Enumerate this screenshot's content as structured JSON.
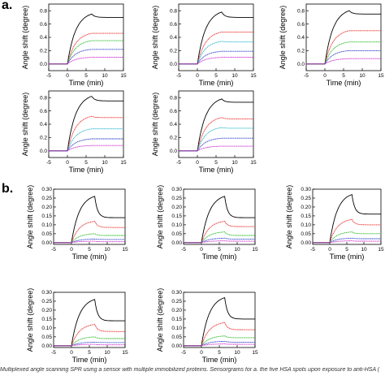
{
  "panel_labels": {
    "a": "a.",
    "b": "b."
  },
  "caption": "Multiplexed angle scanning SPR using a sensor with multiple immobilized proteins. Sensorgrams for a. the five HSA spots upon exposure to anti-HSA (",
  "colors": {
    "black": "#000000",
    "red": "#e8231e",
    "green": "#1fb81f",
    "cyan": "#1cb3c8",
    "blue": "#2238c8",
    "magenta": "#c81ec8"
  },
  "chart_data": [
    {
      "type": "line",
      "panel": "a",
      "index": 1,
      "xlabel": "Time (min)",
      "ylabel": "Angle shift (degree)",
      "xlim": [
        -5,
        15
      ],
      "ylim": [
        -0.1,
        0.9
      ],
      "xticks": [
        "-5",
        "0",
        "5",
        "10",
        "15"
      ],
      "yticks": [
        "0.0",
        "0.2",
        "0.4",
        "0.6",
        "0.8"
      ],
      "injection_start": 0,
      "injection_end": 6.5,
      "series": [
        {
          "color": "black",
          "plateau": 0.75,
          "end": 0.7
        },
        {
          "color": "red",
          "plateau": 0.46,
          "end": 0.46
        },
        {
          "color": "green",
          "plateau": 0.35,
          "end": 0.35
        },
        {
          "color": "blue",
          "plateau": 0.22,
          "end": 0.22
        },
        {
          "color": "magenta",
          "plateau": 0.1,
          "end": 0.1
        }
      ]
    },
    {
      "type": "line",
      "panel": "a",
      "index": 2,
      "xlabel": "Time (min)",
      "ylabel": "Angle shift (degree)",
      "xlim": [
        -5,
        15
      ],
      "ylim": [
        -0.1,
        0.9
      ],
      "xticks": [
        "-5",
        "0",
        "5",
        "10",
        "15"
      ],
      "yticks": [
        "0.0",
        "0.2",
        "0.4",
        "0.6",
        "0.8"
      ],
      "injection_start": 0,
      "injection_end": 6.5,
      "series": [
        {
          "color": "black",
          "plateau": 0.78,
          "end": 0.7
        },
        {
          "color": "red",
          "plateau": 0.48,
          "end": 0.48
        },
        {
          "color": "cyan",
          "plateau": 0.34,
          "end": 0.33
        },
        {
          "color": "blue",
          "plateau": 0.19,
          "end": 0.19
        },
        {
          "color": "magenta",
          "plateau": 0.1,
          "end": 0.1
        }
      ]
    },
    {
      "type": "line",
      "panel": "a",
      "index": 3,
      "xlabel": "Time (min)",
      "ylabel": "Angle shift (degree)",
      "xlim": [
        -5,
        15
      ],
      "ylim": [
        -0.1,
        0.9
      ],
      "xticks": [
        "-5",
        "0",
        "5",
        "10",
        "15"
      ],
      "yticks": [
        "0.0",
        "0.2",
        "0.4",
        "0.6",
        "0.8"
      ],
      "injection_start": 0,
      "injection_end": 6.5,
      "series": [
        {
          "color": "black",
          "plateau": 0.8,
          "end": 0.75
        },
        {
          "color": "red",
          "plateau": 0.5,
          "end": 0.5
        },
        {
          "color": "green",
          "plateau": 0.33,
          "end": 0.33
        },
        {
          "color": "blue",
          "plateau": 0.2,
          "end": 0.2
        },
        {
          "color": "magenta",
          "plateau": 0.08,
          "end": 0.08
        }
      ]
    },
    {
      "type": "line",
      "panel": "a",
      "index": 4,
      "xlabel": "Time (min)",
      "ylabel": "Angle shift (degree)",
      "xlim": [
        -5,
        15
      ],
      "ylim": [
        -0.1,
        0.9
      ],
      "xticks": [
        "-5",
        "0",
        "5",
        "10",
        "15"
      ],
      "yticks": [
        "0.0",
        "0.2",
        "0.4",
        "0.6",
        "0.8"
      ],
      "injection_start": 0,
      "injection_end": 6.5,
      "series": [
        {
          "color": "black",
          "plateau": 0.82,
          "end": 0.75
        },
        {
          "color": "red",
          "plateau": 0.52,
          "end": 0.5
        },
        {
          "color": "cyan",
          "plateau": 0.33,
          "end": 0.33
        },
        {
          "color": "blue",
          "plateau": 0.18,
          "end": 0.18
        },
        {
          "color": "magenta",
          "plateau": 0.08,
          "end": 0.08
        }
      ]
    },
    {
      "type": "line",
      "panel": "a",
      "index": 5,
      "xlabel": "Time (min)",
      "ylabel": "Angle shift (degree)",
      "xlim": [
        -5,
        15
      ],
      "ylim": [
        -0.1,
        0.9
      ],
      "xticks": [
        "-5",
        "0",
        "5",
        "10",
        "15"
      ],
      "yticks": [
        "0.0",
        "0.2",
        "0.4",
        "0.6",
        "0.8"
      ],
      "injection_start": 0,
      "injection_end": 6.5,
      "series": [
        {
          "color": "black",
          "plateau": 0.78,
          "end": 0.73
        },
        {
          "color": "red",
          "plateau": 0.5,
          "end": 0.48
        },
        {
          "color": "cyan",
          "plateau": 0.35,
          "end": 0.34
        },
        {
          "color": "blue",
          "plateau": 0.19,
          "end": 0.19
        },
        {
          "color": "magenta",
          "plateau": 0.07,
          "end": 0.07
        }
      ]
    },
    {
      "type": "line",
      "panel": "b",
      "index": 1,
      "xlabel": "Time (min)",
      "ylabel": "Angle shift (degree)",
      "xlim": [
        -5,
        15
      ],
      "ylim": [
        -0.01,
        0.3
      ],
      "xticks": [
        "-5",
        "0",
        "5",
        "10",
        "15"
      ],
      "yticks": [
        "0.00",
        "0.05",
        "0.10",
        "0.15",
        "0.20",
        "0.25",
        "0.30"
      ],
      "injection_start": 0,
      "injection_end": 6.5,
      "series": [
        {
          "color": "black",
          "plateau": 0.26,
          "end": 0.14
        },
        {
          "color": "red",
          "plateau": 0.12,
          "end": 0.085
        },
        {
          "color": "green",
          "plateau": 0.05,
          "end": 0.04
        },
        {
          "color": "blue",
          "plateau": 0.02,
          "end": 0.018
        },
        {
          "color": "magenta",
          "plateau": 0.008,
          "end": 0.005
        }
      ]
    },
    {
      "type": "line",
      "panel": "b",
      "index": 2,
      "xlabel": "Time (min)",
      "ylabel": "Angle shift (degree)",
      "xlim": [
        -5,
        15
      ],
      "ylim": [
        -0.01,
        0.3
      ],
      "xticks": [
        "-5",
        "0",
        "5",
        "10",
        "15"
      ],
      "yticks": [
        "0.00",
        "0.05",
        "0.10",
        "0.15",
        "0.20",
        "0.25",
        "0.30"
      ],
      "injection_start": 0,
      "injection_end": 6.5,
      "series": [
        {
          "color": "black",
          "plateau": 0.26,
          "end": 0.14
        },
        {
          "color": "red",
          "plateau": 0.12,
          "end": 0.09
        },
        {
          "color": "green",
          "plateau": 0.06,
          "end": 0.04
        },
        {
          "color": "blue",
          "plateau": 0.025,
          "end": 0.02
        },
        {
          "color": "magenta",
          "plateau": 0.01,
          "end": 0.008
        }
      ]
    },
    {
      "type": "line",
      "panel": "b",
      "index": 3,
      "xlabel": "Time (min)",
      "ylabel": "Angle shift (degree)",
      "xlim": [
        -5,
        15
      ],
      "ylim": [
        -0.01,
        0.3
      ],
      "xticks": [
        "-5",
        "0",
        "5",
        "10",
        "15"
      ],
      "yticks": [
        "0.00",
        "0.05",
        "0.10",
        "0.15",
        "0.20",
        "0.25",
        "0.30"
      ],
      "injection_start": 0,
      "injection_end": 6.5,
      "series": [
        {
          "color": "black",
          "plateau": 0.27,
          "end": 0.16
        },
        {
          "color": "red",
          "plateau": 0.13,
          "end": 0.1
        },
        {
          "color": "green",
          "plateau": 0.06,
          "end": 0.05
        },
        {
          "color": "blue",
          "plateau": 0.025,
          "end": 0.022
        },
        {
          "color": "magenta",
          "plateau": 0.01,
          "end": 0.008
        }
      ]
    },
    {
      "type": "line",
      "panel": "b",
      "index": 4,
      "xlabel": "Time (min)",
      "ylabel": "Angle shift (degree)",
      "xlim": [
        -5,
        15
      ],
      "ylim": [
        -0.01,
        0.3
      ],
      "xticks": [
        "-5",
        "0",
        "5",
        "10",
        "15"
      ],
      "yticks": [
        "0.00",
        "0.05",
        "0.10",
        "0.15",
        "0.20",
        "0.25",
        "0.30"
      ],
      "injection_start": 0,
      "injection_end": 6.5,
      "series": [
        {
          "color": "black",
          "plateau": 0.26,
          "end": 0.14
        },
        {
          "color": "red",
          "plateau": 0.12,
          "end": 0.08
        },
        {
          "color": "green",
          "plateau": 0.05,
          "end": 0.04
        },
        {
          "color": "blue",
          "plateau": 0.02,
          "end": 0.018
        },
        {
          "color": "magenta",
          "plateau": 0.008,
          "end": 0.005
        }
      ]
    },
    {
      "type": "line",
      "panel": "b",
      "index": 5,
      "xlabel": "Time (min)",
      "ylabel": "Angle shift (degree)",
      "xlim": [
        -5,
        15
      ],
      "ylim": [
        -0.01,
        0.3
      ],
      "xticks": [
        "-5",
        "0",
        "5",
        "10",
        "15"
      ],
      "yticks": [
        "0.00",
        "0.05",
        "0.10",
        "0.15",
        "0.20",
        "0.25",
        "0.30"
      ],
      "injection_start": 0,
      "injection_end": 6.5,
      "series": [
        {
          "color": "black",
          "plateau": 0.27,
          "end": 0.15
        },
        {
          "color": "red",
          "plateau": 0.13,
          "end": 0.09
        },
        {
          "color": "green",
          "plateau": 0.055,
          "end": 0.045
        },
        {
          "color": "blue",
          "plateau": 0.025,
          "end": 0.02
        },
        {
          "color": "magenta",
          "plateau": 0.01,
          "end": 0.008
        }
      ]
    }
  ]
}
